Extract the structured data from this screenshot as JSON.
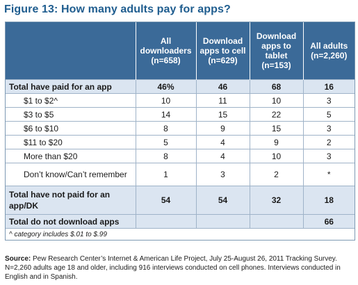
{
  "figure": {
    "title": "Figure 13: How many adults pay for apps?"
  },
  "table": {
    "headers": [
      "",
      "All downloaders (n=658)",
      "Download apps to cell (n=629)",
      "Download apps to tablet (n=153)",
      "All adults (n=2,260)"
    ],
    "rows": [
      {
        "label": "Total have paid for an app",
        "values": [
          "46%",
          "46",
          "68",
          "16"
        ]
      },
      {
        "label": "$1 to $2^",
        "values": [
          "10",
          "11",
          "10",
          "3"
        ]
      },
      {
        "label": "$3 to $5",
        "values": [
          "14",
          "15",
          "22",
          "5"
        ]
      },
      {
        "label": "$6 to $10",
        "values": [
          "8",
          "9",
          "15",
          "3"
        ]
      },
      {
        "label": "$11 to $20",
        "values": [
          "5",
          "4",
          "9",
          "2"
        ]
      },
      {
        "label": "More than $20",
        "values": [
          "8",
          "4",
          "10",
          "3"
        ]
      },
      {
        "label": "Don’t know/Can’t remember",
        "values": [
          "1",
          "3",
          "2",
          "*"
        ]
      },
      {
        "label": "Total have not paid for an app/DK",
        "values": [
          "54",
          "54",
          "32",
          "18"
        ]
      },
      {
        "label": "Total do not download apps",
        "values": [
          "",
          "",
          "",
          "66"
        ]
      }
    ],
    "footnote": "^ category includes $.01 to $.99"
  },
  "source": {
    "label": "Source:",
    "text": " Pew Research Center’s Internet & American Life Project, July 25-August 26, 2011 Tracking Survey.  N=2,260 adults age 18 and older, including 916 interviews conducted on cell phones.  Interviews conducted in English and in Spanish."
  }
}
